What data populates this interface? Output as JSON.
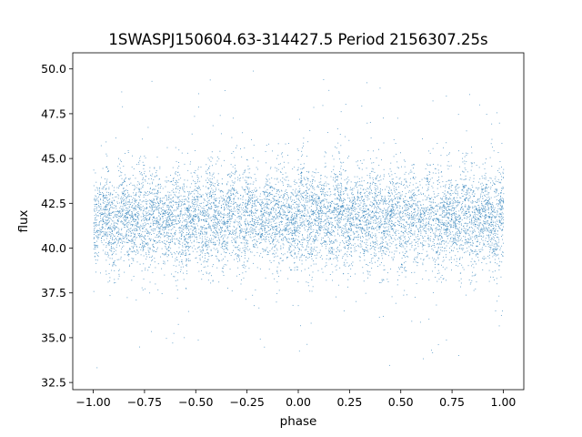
{
  "chart_data": {
    "type": "scatter",
    "title": "1SWASPJ150604.63-314427.5 Period 2156307.25s",
    "xlabel": "phase",
    "ylabel": "flux",
    "xlim": [
      -1.1,
      1.1
    ],
    "ylim": [
      32.1,
      50.9
    ],
    "xticks": [
      -1.0,
      -0.75,
      -0.5,
      -0.25,
      0.0,
      0.25,
      0.5,
      0.75,
      1.0
    ],
    "xtick_labels": [
      "−1.00",
      "−0.75",
      "−0.50",
      "−0.25",
      "0.00",
      "0.25",
      "0.50",
      "0.75",
      "1.00"
    ],
    "yticks": [
      32.5,
      35.0,
      37.5,
      40.0,
      42.5,
      45.0,
      47.5,
      50.0
    ],
    "ytick_labels": [
      "32.5",
      "35.0",
      "37.5",
      "40.0",
      "42.5",
      "45.0",
      "47.5",
      "50.0"
    ],
    "grid": false,
    "series": [
      {
        "color": "#1f77b4",
        "phase_range": [
          -1.0,
          1.0
        ],
        "flux_median": 41.7,
        "flux_core_range": [
          38.5,
          45.0
        ],
        "flux_full_range": [
          33.0,
          50.0
        ]
      }
    ]
  }
}
